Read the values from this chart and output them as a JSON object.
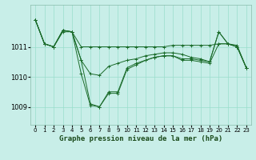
{
  "background_color": "#c8eee8",
  "grid_color": "#99ddcc",
  "line_color": "#1a6b2a",
  "xlabel": "Graphe pression niveau de la mer (hPa)",
  "ylim": [
    1008.4,
    1012.4
  ],
  "xlim": [
    -0.5,
    23.5
  ],
  "yticks": [
    1009,
    1010,
    1011
  ],
  "xtick_labels": [
    "0",
    "1",
    "2",
    "3",
    "4",
    "5",
    "6",
    "7",
    "8",
    "9",
    "10",
    "11",
    "12",
    "13",
    "14",
    "15",
    "16",
    "17",
    "18",
    "19",
    "20",
    "21",
    "22",
    "23"
  ],
  "series": [
    [
      1011.9,
      1011.1,
      1011.0,
      1011.5,
      1011.5,
      1010.1,
      1009.05,
      1009.0,
      1009.45,
      1009.45,
      1010.25,
      1010.4,
      1010.55,
      1010.65,
      1010.7,
      1010.7,
      1010.55,
      1010.55,
      1010.5,
      1010.45,
      1011.1,
      1011.1,
      1011.0,
      1010.3
    ],
    [
      1011.9,
      1011.1,
      1011.0,
      1011.55,
      1011.5,
      1011.0,
      1011.0,
      1011.0,
      1011.0,
      1011.0,
      1011.0,
      1011.0,
      1011.0,
      1011.0,
      1011.0,
      1011.05,
      1011.05,
      1011.05,
      1011.05,
      1011.05,
      1011.1,
      1011.1,
      1011.05,
      1010.3
    ],
    [
      1011.9,
      1011.1,
      1011.0,
      1011.55,
      1011.5,
      1010.55,
      1010.1,
      1010.05,
      1010.35,
      1010.45,
      1010.55,
      1010.6,
      1010.7,
      1010.75,
      1010.8,
      1010.8,
      1010.75,
      1010.65,
      1010.6,
      1010.5,
      1011.5,
      1011.1,
      1011.0,
      1010.3
    ],
    [
      1011.9,
      1011.1,
      1011.0,
      1011.55,
      1011.5,
      1010.55,
      1009.1,
      1009.0,
      1009.5,
      1009.5,
      1010.3,
      1010.45,
      1010.55,
      1010.65,
      1010.7,
      1010.7,
      1010.6,
      1010.6,
      1010.55,
      1010.5,
      1011.5,
      1011.1,
      1011.0,
      1010.3
    ]
  ]
}
